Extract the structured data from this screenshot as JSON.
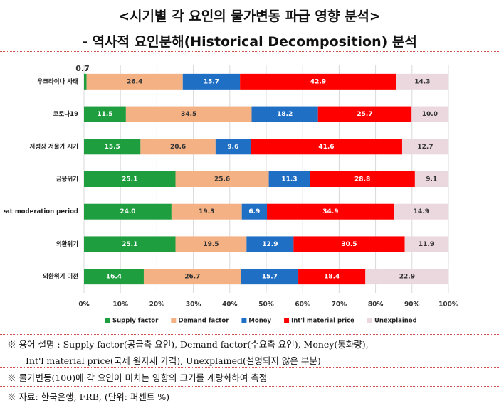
{
  "title_line1": "<시기별 각 요인의 물가변동 파급 영향 분석>",
  "title_line2": "- 역사적 요인분해(Historical Decomposition) 분석",
  "notes": [
    "※ 용어 설명 : Supply factor(공급측 요인), Demand factor(수요측 요인), Money(통화량),",
    "Int'l material price(국제 원자재 가격), Unexplained(설명되지 않은 부분)",
    "※ 물가변동(100)에 각 요인이 미치는 영향의 크기를 계량화하여 측정",
    "※ 자료: 한국은행, FRB, (단위: 퍼센트 %)"
  ],
  "chart_data": {
    "type": "stacked_barh",
    "categories": [
      "우크라이나 사태",
      "코로나19",
      "저성장 저물가 시기",
      "금융위기",
      "Great moderation period",
      "외환위기",
      "외환위기 이전"
    ],
    "series": [
      {
        "name": "Supply factor",
        "color": "#1e9e3e",
        "values": [
          0.7,
          11.5,
          15.5,
          25.1,
          24.0,
          25.1,
          16.4
        ],
        "value_labels": [
          "0.7",
          "11.5",
          "15.5",
          "25.1",
          "24.0",
          "25.1",
          "16.4"
        ]
      },
      {
        "name": "Demand factor",
        "color": "#f4b183",
        "values": [
          26.4,
          34.5,
          20.6,
          25.6,
          19.3,
          19.5,
          26.7
        ],
        "value_labels": [
          "26.4",
          "34.5",
          "20.6",
          "25.6",
          "19.3",
          "19.5",
          "26.7"
        ]
      },
      {
        "name": "Money",
        "color": "#1f6fc5",
        "values": [
          15.7,
          18.2,
          9.6,
          11.3,
          6.9,
          12.9,
          15.7
        ],
        "value_labels": [
          "15.7",
          "18.2",
          "9.6",
          "11.3",
          "6.9",
          "12.9",
          "15.7"
        ]
      },
      {
        "name": "Int'l material price",
        "color": "#ff0000",
        "values": [
          42.9,
          25.7,
          41.6,
          28.8,
          34.9,
          30.5,
          18.4
        ],
        "value_labels": [
          "42.9",
          "25.7",
          "41.6",
          "28.8",
          "34.9",
          "30.5",
          "18.4"
        ]
      },
      {
        "name": "Unexplained",
        "color": "#ead8de",
        "values": [
          14.3,
          10.0,
          12.7,
          9.1,
          14.9,
          11.9,
          22.9
        ],
        "value_labels": [
          "14.3",
          "10.0",
          "12.7",
          "9.1",
          "14.9",
          "11.9",
          "22.9"
        ]
      }
    ],
    "xlim": [
      0,
      100
    ],
    "xticks": [
      {
        "value": 0,
        "label": "0%"
      },
      {
        "value": 10,
        "label": "10%"
      },
      {
        "value": 20,
        "label": "20%"
      },
      {
        "value": 30,
        "label": "30%"
      },
      {
        "value": 40,
        "label": "40%"
      },
      {
        "value": 50,
        "label": "50%"
      },
      {
        "value": 60,
        "label": "60%"
      },
      {
        "value": 70,
        "label": "70%"
      },
      {
        "value": 80,
        "label": "80%"
      },
      {
        "value": 90,
        "label": "90%"
      },
      {
        "value": 100,
        "label": "100%"
      }
    ],
    "grid": true,
    "legend": "bottom"
  }
}
